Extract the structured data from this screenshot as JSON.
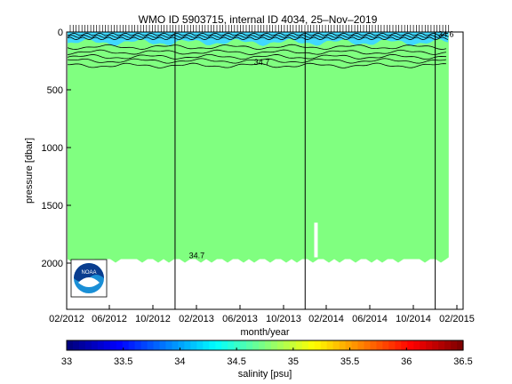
{
  "chart_data": {
    "type": "heatmap",
    "title": "WMO ID 5903715, internal ID 4034, 25–Nov–2019",
    "xlabel": "month/year",
    "ylabel": "pressure [dbar]",
    "x_ticks": [
      "02/2012",
      "06/2012",
      "10/2012",
      "02/2013",
      "06/2013",
      "10/2013",
      "02/2014",
      "06/2014",
      "10/2014",
      "02/2015"
    ],
    "y_ticks": [
      0,
      500,
      1000,
      1500,
      2000
    ],
    "ylim": [
      0,
      2400
    ],
    "y_reversed": true,
    "xlim": [
      "02/2012",
      "05/2015"
    ],
    "deep_layer_salinity": 34.7,
    "surface_salinity_range": [
      34.4,
      34.6
    ],
    "max_profile_depth": 1950,
    "gap_markers_x": [
      "12/2012",
      "12/2013",
      "12/2014"
    ],
    "contour_labels": [
      {
        "text": "34.7",
        "x": "08/2013",
        "y": 260
      },
      {
        "text": "34.7",
        "x": "02/2013",
        "y": 1935
      },
      {
        "text": "34.6",
        "x": "01/2015",
        "y": 20
      }
    ],
    "colorbar": {
      "label": "salinity [psu]",
      "min": 33,
      "max": 36.5,
      "ticks": [
        "33",
        "33.5",
        "34",
        "34.5",
        "35",
        "35.5",
        "36",
        "36.5"
      ]
    },
    "colors": {
      "deep_water": "#80ff80",
      "surface_water": "#40d8ff",
      "contour": "#000000"
    },
    "logo": {
      "text": "NOAA"
    }
  }
}
